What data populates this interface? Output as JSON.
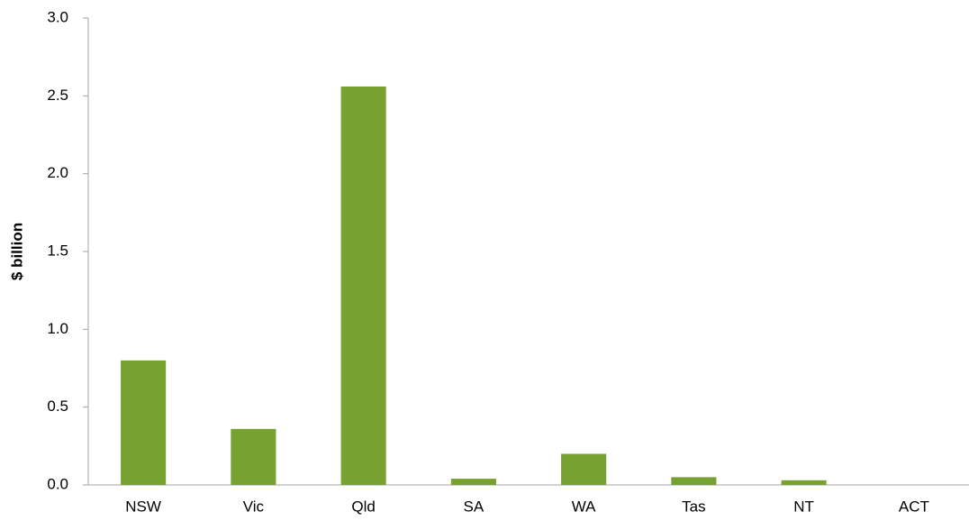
{
  "chart_data": {
    "type": "bar",
    "y_label": "$ billion",
    "categories": [
      "NSW",
      "Vic",
      "Qld",
      "SA",
      "WA",
      "Tas",
      "NT",
      "ACT"
    ],
    "values": [
      0.8,
      0.36,
      2.56,
      0.04,
      0.2,
      0.05,
      0.03,
      0
    ],
    "color": "#77a232",
    "ylim": [
      0,
      3
    ],
    "yticks": [
      {
        "value": 0,
        "label": "0.0"
      },
      0.5,
      {
        "value": 1,
        "label": "1.0"
      },
      1.5,
      {
        "value": 2,
        "label": "2.0"
      },
      2.5,
      {
        "value": 3,
        "label": "3.0"
      }
    ],
    "grid": false
  }
}
